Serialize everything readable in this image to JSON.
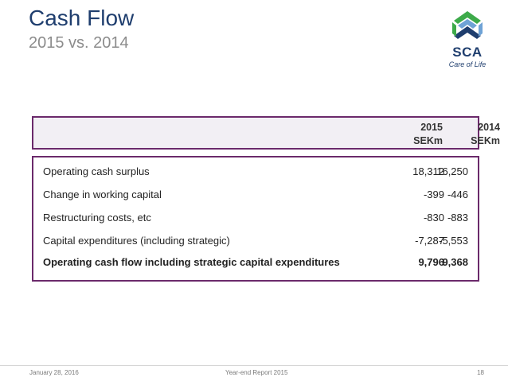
{
  "header": {
    "title": "Cash Flow",
    "subtitle": "2015 vs. 2014"
  },
  "logo": {
    "name": "SCA",
    "tagline": "Care of Life",
    "colors": {
      "blue": "#1f3e6e",
      "green": "#3daa4a",
      "lightblue": "#6fa3d6"
    }
  },
  "table": {
    "columns": [
      {
        "year": "2015",
        "unit": "SEKm"
      },
      {
        "year": "2014",
        "unit": "SEKm"
      }
    ],
    "rows": [
      {
        "label": "Operating cash surplus",
        "v2015": "18,312",
        "v2014": "16,250"
      },
      {
        "label": "Change in working capital",
        "v2015": "-399",
        "v2014": "-446"
      },
      {
        "label": "Restructuring costs, etc",
        "v2015": "-830",
        "v2014": "-883"
      },
      {
        "label": "Capital expenditures (including strategic)",
        "v2015": "-7,287",
        "v2014": "-5,553"
      },
      {
        "label": "Operating cash flow including strategic capital expenditures",
        "v2015": "9,796",
        "v2014": "9,368"
      }
    ],
    "border_color": "#6b2a6b"
  },
  "footer": {
    "date": "January 28, 2016",
    "report": "Year-end Report 2015",
    "page": "18"
  }
}
